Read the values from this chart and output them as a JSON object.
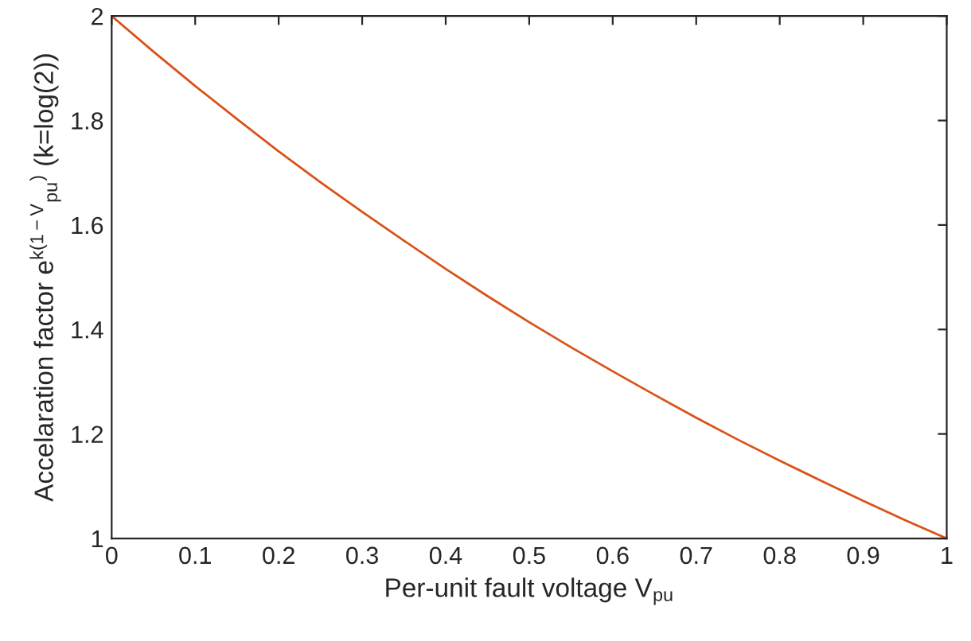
{
  "chart_data": {
    "type": "line",
    "xlabel": "Per-unit fault voltage V$_{pu}$",
    "ylabel": "Accelaration factor e$^{k(1−V}$$_{pu}$$^{)}$ (k=log(2))",
    "x": [
      0,
      0.05,
      0.1,
      0.15,
      0.2,
      0.25,
      0.3,
      0.35,
      0.4,
      0.45,
      0.5,
      0.55,
      0.6,
      0.65,
      0.7,
      0.75,
      0.8,
      0.85,
      0.9,
      0.95,
      1
    ],
    "series": [
      {
        "color": "#d95319",
        "values": [
          2,
          1.932,
          1.866,
          1.803,
          1.741,
          1.682,
          1.625,
          1.57,
          1.516,
          1.464,
          1.414,
          1.366,
          1.32,
          1.275,
          1.231,
          1.189,
          1.149,
          1.11,
          1.072,
          1.035,
          1
        ]
      }
    ],
    "xlim": [
      0,
      1
    ],
    "ylim": [
      1,
      2
    ],
    "xticks": [
      0,
      0.1,
      0.2,
      0.3,
      0.4,
      0.5,
      0.6,
      0.7,
      0.8,
      0.9,
      1
    ],
    "yticks": [
      1,
      1.2,
      1.4,
      1.6,
      1.8,
      2
    ],
    "grid": false,
    "legend": false,
    "marker": "none",
    "line_style": "solid"
  }
}
